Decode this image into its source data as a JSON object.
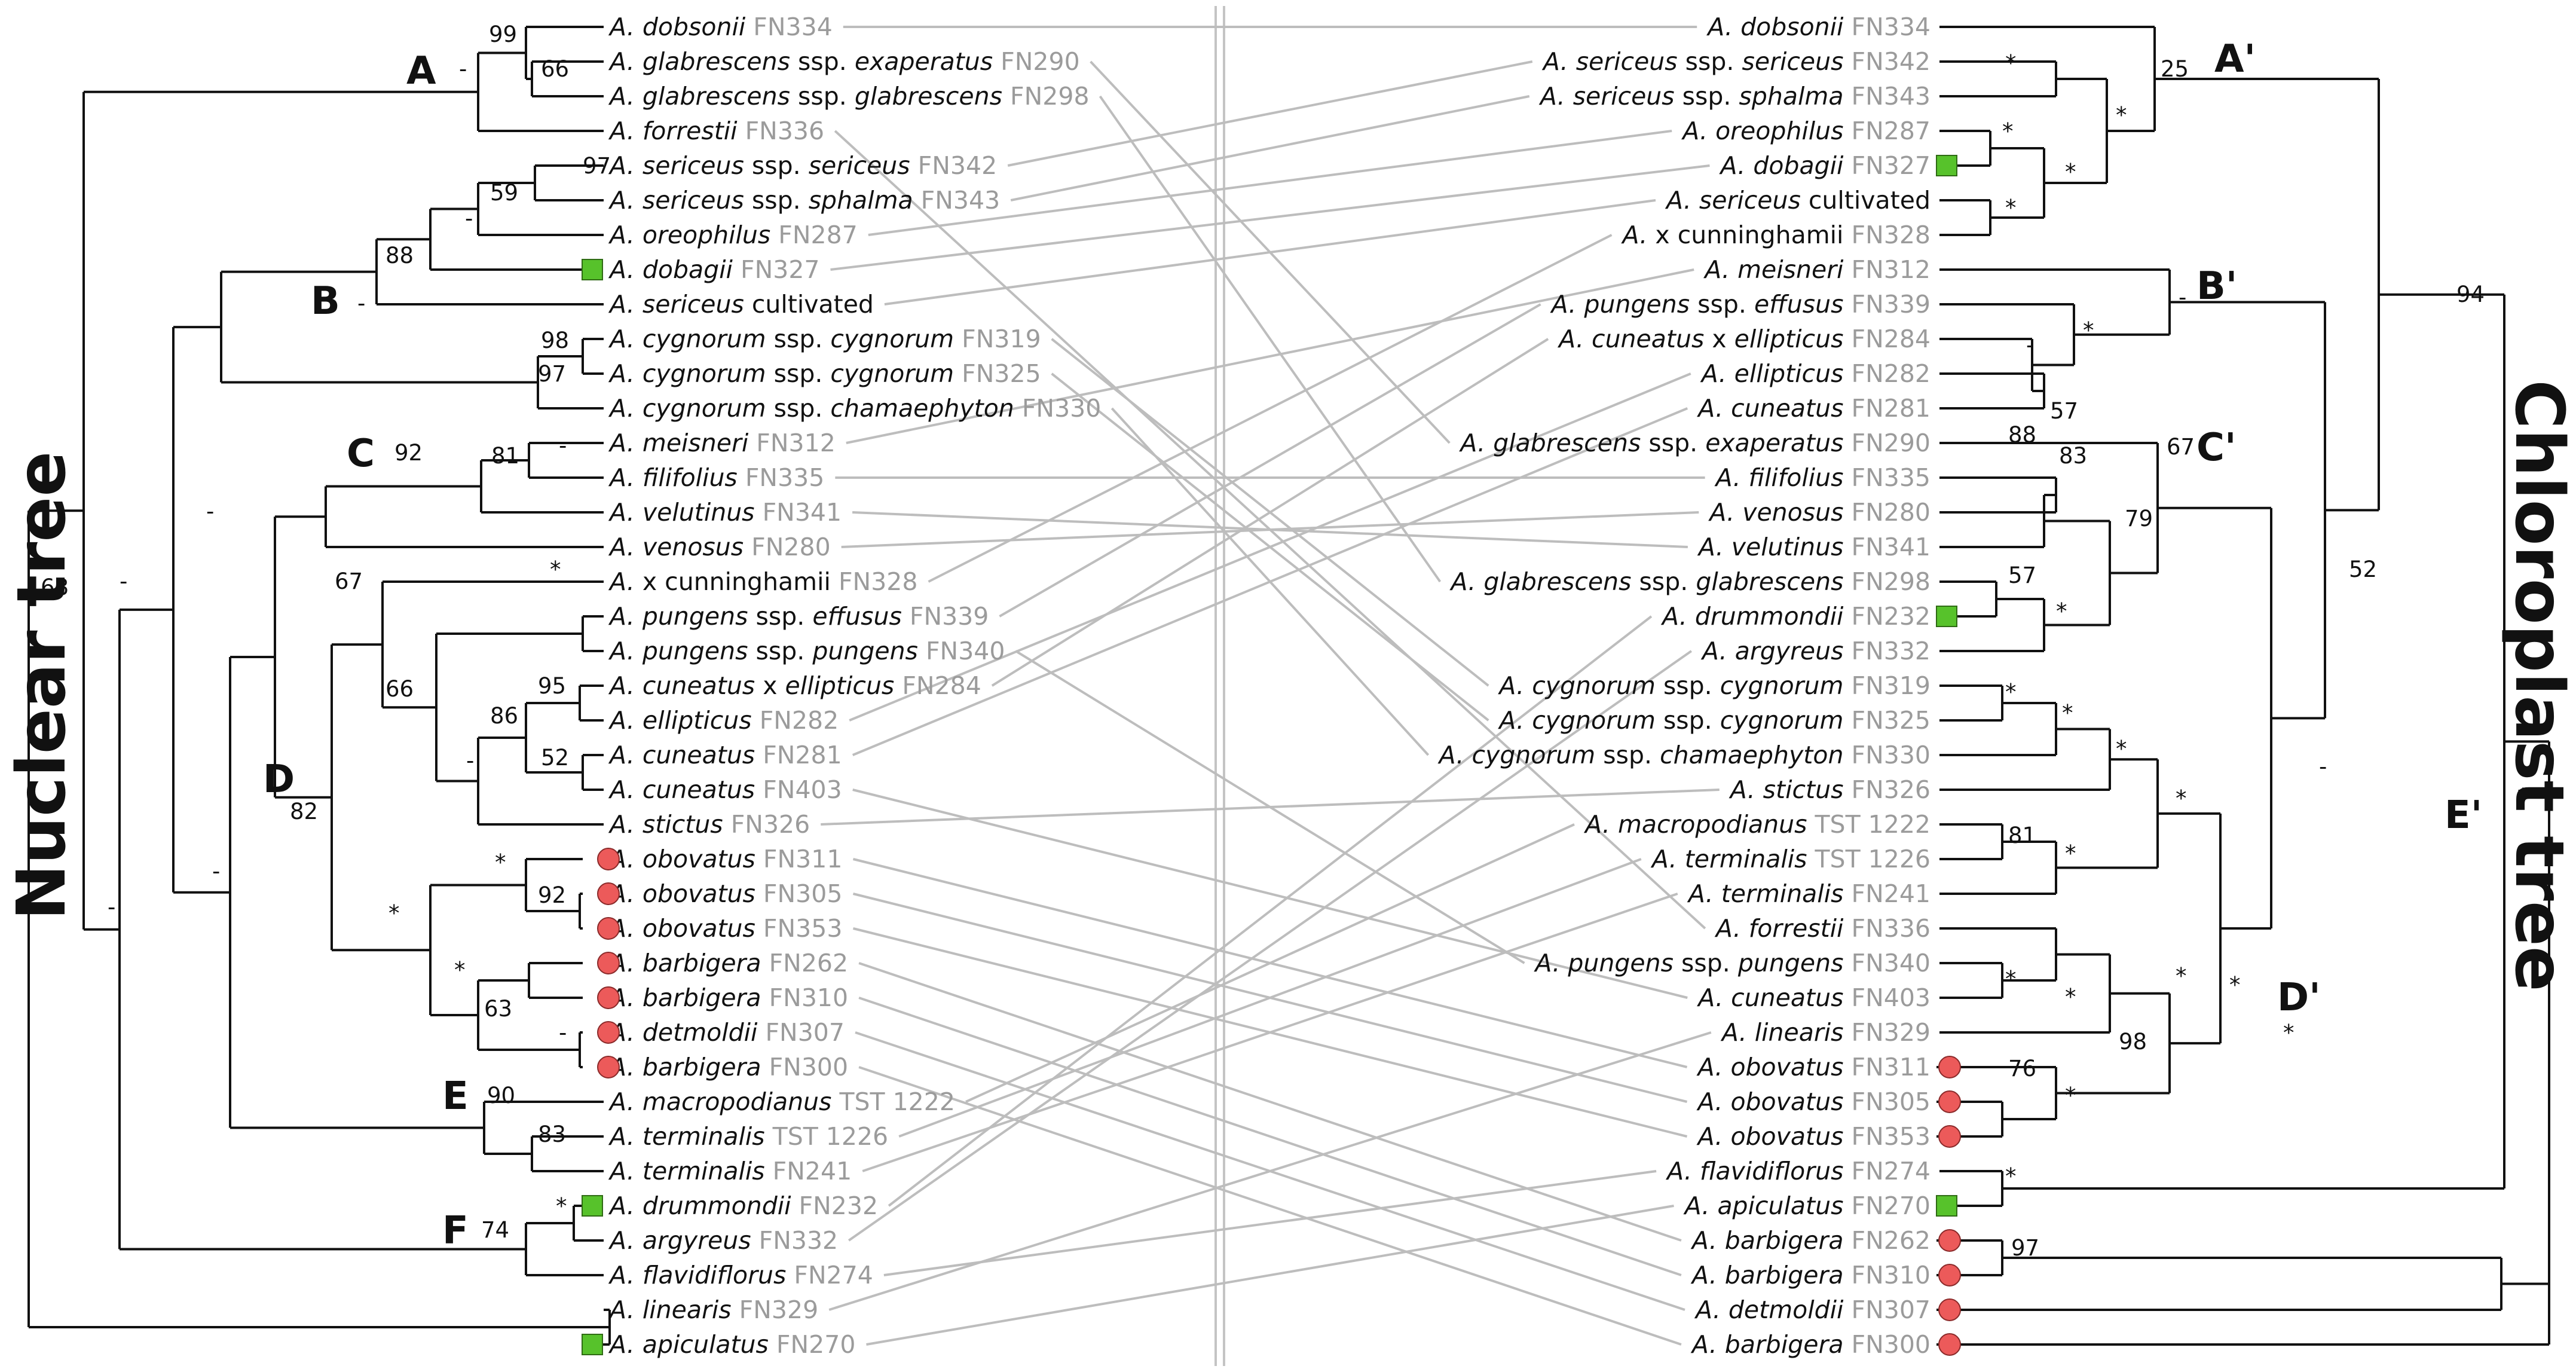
{
  "titles": {
    "nuclear": "Nuclear tree",
    "chloroplast": "Chloroplast tree"
  },
  "colors": {
    "branch": "#111111",
    "connector": "#bdbdbd",
    "code_text": "#9b9b9b",
    "square_marker": "#57c22b",
    "circle_marker": "#ec5a5a"
  },
  "nuclear_tips": [
    {
      "genus": "A.",
      "parts": [
        {
          "t": "dobsonii",
          "i": true
        }
      ],
      "code": "FN334",
      "marker": null
    },
    {
      "genus": "A.",
      "parts": [
        {
          "t": "glabrescens",
          "i": true
        },
        {
          "t": " ssp. ",
          "i": false
        },
        {
          "t": "exaperatus",
          "i": true
        }
      ],
      "code": "FN290",
      "marker": null
    },
    {
      "genus": "A.",
      "parts": [
        {
          "t": "glabrescens",
          "i": true
        },
        {
          "t": " ssp. ",
          "i": false
        },
        {
          "t": "glabrescens",
          "i": true
        }
      ],
      "code": "FN298",
      "marker": null
    },
    {
      "genus": "A.",
      "parts": [
        {
          "t": "forrestii",
          "i": true
        }
      ],
      "code": "FN336",
      "marker": null
    },
    {
      "genus": "A.",
      "parts": [
        {
          "t": "sericeus",
          "i": true
        },
        {
          "t": " ssp. ",
          "i": false
        },
        {
          "t": "sericeus",
          "i": true
        }
      ],
      "code": "FN342",
      "marker": null
    },
    {
      "genus": "A.",
      "parts": [
        {
          "t": "sericeus",
          "i": true
        },
        {
          "t": " ssp. ",
          "i": false
        },
        {
          "t": "sphalma",
          "i": true
        }
      ],
      "code": "FN343",
      "marker": null
    },
    {
      "genus": "A.",
      "parts": [
        {
          "t": "oreophilus",
          "i": true
        }
      ],
      "code": "FN287",
      "marker": null
    },
    {
      "genus": "A.",
      "parts": [
        {
          "t": "dobagii",
          "i": true
        }
      ],
      "code": "FN327",
      "marker": "square"
    },
    {
      "genus": "A.",
      "parts": [
        {
          "t": "sericeus",
          "i": true
        },
        {
          "t": " cultivated",
          "i": false
        }
      ],
      "code": "",
      "marker": null
    },
    {
      "genus": "A.",
      "parts": [
        {
          "t": "cygnorum",
          "i": true
        },
        {
          "t": " ssp. ",
          "i": false
        },
        {
          "t": "cygnorum",
          "i": true
        }
      ],
      "code": "FN319",
      "marker": null
    },
    {
      "genus": "A.",
      "parts": [
        {
          "t": "cygnorum",
          "i": true
        },
        {
          "t": " ssp. ",
          "i": false
        },
        {
          "t": "cygnorum",
          "i": true
        }
      ],
      "code": "FN325",
      "marker": null
    },
    {
      "genus": "A.",
      "parts": [
        {
          "t": "cygnorum",
          "i": true
        },
        {
          "t": " ssp. ",
          "i": false
        },
        {
          "t": "chamaephyton",
          "i": true
        }
      ],
      "code": "FN330",
      "marker": null
    },
    {
      "genus": "A.",
      "parts": [
        {
          "t": "meisneri",
          "i": true
        }
      ],
      "code": "FN312",
      "marker": null
    },
    {
      "genus": "A.",
      "parts": [
        {
          "t": "filifolius",
          "i": true
        }
      ],
      "code": "FN335",
      "marker": null
    },
    {
      "genus": "A.",
      "parts": [
        {
          "t": "velutinus",
          "i": true
        }
      ],
      "code": "FN341",
      "marker": null
    },
    {
      "genus": "A.",
      "parts": [
        {
          "t": "venosus",
          "i": true
        }
      ],
      "code": "FN280",
      "marker": null
    },
    {
      "genus": "A.",
      "parts": [
        {
          "t": "x cunninghamii",
          "i": false
        }
      ],
      "code": "FN328",
      "marker": null
    },
    {
      "genus": "A.",
      "parts": [
        {
          "t": "pungens",
          "i": true
        },
        {
          "t": " ssp. ",
          "i": false
        },
        {
          "t": "effusus",
          "i": true
        }
      ],
      "code": "FN339",
      "marker": null
    },
    {
      "genus": "A.",
      "parts": [
        {
          "t": "pungens",
          "i": true
        },
        {
          "t": " ssp. ",
          "i": false
        },
        {
          "t": "pungens",
          "i": true
        }
      ],
      "code": "FN340",
      "marker": null
    },
    {
      "genus": "A.",
      "parts": [
        {
          "t": "cuneatus",
          "i": true
        },
        {
          "t": " x ",
          "i": false
        },
        {
          "t": "ellipticus",
          "i": true
        }
      ],
      "code": "FN284",
      "marker": null
    },
    {
      "genus": "A.",
      "parts": [
        {
          "t": "ellipticus",
          "i": true
        }
      ],
      "code": "FN282",
      "marker": null
    },
    {
      "genus": "A.",
      "parts": [
        {
          "t": "cuneatus",
          "i": true
        }
      ],
      "code": "FN281",
      "marker": null
    },
    {
      "genus": "A.",
      "parts": [
        {
          "t": "cuneatus",
          "i": true
        }
      ],
      "code": "FN403",
      "marker": null
    },
    {
      "genus": "A.",
      "parts": [
        {
          "t": "stictus",
          "i": true
        }
      ],
      "code": "FN326",
      "marker": null
    },
    {
      "genus": "A.",
      "parts": [
        {
          "t": "obovatus",
          "i": true
        }
      ],
      "code": "FN311",
      "marker": "circle"
    },
    {
      "genus": "A.",
      "parts": [
        {
          "t": "obovatus",
          "i": true
        }
      ],
      "code": "FN305",
      "marker": "circle"
    },
    {
      "genus": "A.",
      "parts": [
        {
          "t": "obovatus",
          "i": true
        }
      ],
      "code": "FN353",
      "marker": "circle"
    },
    {
      "genus": "A.",
      "parts": [
        {
          "t": "barbigera",
          "i": true
        }
      ],
      "code": "FN262",
      "marker": "circle"
    },
    {
      "genus": "A.",
      "parts": [
        {
          "t": "barbigera",
          "i": true
        }
      ],
      "code": "FN310",
      "marker": "circle"
    },
    {
      "genus": "A.",
      "parts": [
        {
          "t": "detmoldii",
          "i": true
        }
      ],
      "code": "FN307",
      "marker": "circle"
    },
    {
      "genus": "A.",
      "parts": [
        {
          "t": "barbigera",
          "i": true
        }
      ],
      "code": "FN300",
      "marker": "circle"
    },
    {
      "genus": "A.",
      "parts": [
        {
          "t": "macropodianus",
          "i": true
        }
      ],
      "code": "TST 1222",
      "marker": null
    },
    {
      "genus": "A.",
      "parts": [
        {
          "t": "terminalis",
          "i": true
        }
      ],
      "code": "TST 1226",
      "marker": null
    },
    {
      "genus": "A.",
      "parts": [
        {
          "t": "terminalis",
          "i": true
        }
      ],
      "code": "FN241",
      "marker": null
    },
    {
      "genus": "A.",
      "parts": [
        {
          "t": "drummondii",
          "i": true
        }
      ],
      "code": "FN232",
      "marker": "square"
    },
    {
      "genus": "A.",
      "parts": [
        {
          "t": "argyreus",
          "i": true
        }
      ],
      "code": "FN332",
      "marker": null
    },
    {
      "genus": "A.",
      "parts": [
        {
          "t": "flavidiflorus",
          "i": true
        }
      ],
      "code": "FN274",
      "marker": null
    },
    {
      "genus": "A.",
      "parts": [
        {
          "t": "linearis",
          "i": true
        }
      ],
      "code": "FN329",
      "marker": null
    },
    {
      "genus": "A.",
      "parts": [
        {
          "t": "apiculatus",
          "i": true
        }
      ],
      "code": "FN270",
      "marker": "square"
    }
  ],
  "chloroplast_tips": [
    {
      "genus": "A.",
      "parts": [
        {
          "t": "dobsonii",
          "i": true
        }
      ],
      "code": "FN334",
      "marker": null
    },
    {
      "genus": "A.",
      "parts": [
        {
          "t": "sericeus",
          "i": true
        },
        {
          "t": " ssp. ",
          "i": false
        },
        {
          "t": "sericeus",
          "i": true
        }
      ],
      "code": "FN342",
      "marker": null
    },
    {
      "genus": "A.",
      "parts": [
        {
          "t": "sericeus",
          "i": true
        },
        {
          "t": " ssp. ",
          "i": false
        },
        {
          "t": "sphalma",
          "i": true
        }
      ],
      "code": "FN343",
      "marker": null
    },
    {
      "genus": "A.",
      "parts": [
        {
          "t": "oreophilus",
          "i": true
        }
      ],
      "code": "FN287",
      "marker": null
    },
    {
      "genus": "A.",
      "parts": [
        {
          "t": "dobagii",
          "i": true
        }
      ],
      "code": "FN327",
      "marker": "square"
    },
    {
      "genus": "A.",
      "parts": [
        {
          "t": "sericeus",
          "i": true
        },
        {
          "t": " cultivated",
          "i": false
        }
      ],
      "code": "",
      "marker": null
    },
    {
      "genus": "A.",
      "parts": [
        {
          "t": "x cunninghamii",
          "i": false
        }
      ],
      "code": "FN328",
      "marker": null
    },
    {
      "genus": "A.",
      "parts": [
        {
          "t": "meisneri",
          "i": true
        }
      ],
      "code": "FN312",
      "marker": null
    },
    {
      "genus": "A.",
      "parts": [
        {
          "t": "pungens",
          "i": true
        },
        {
          "t": " ssp. ",
          "i": false
        },
        {
          "t": "effusus",
          "i": true
        }
      ],
      "code": "FN339",
      "marker": null
    },
    {
      "genus": "A.",
      "parts": [
        {
          "t": "cuneatus",
          "i": true
        },
        {
          "t": " x ",
          "i": false
        },
        {
          "t": "ellipticus",
          "i": true
        }
      ],
      "code": "FN284",
      "marker": null
    },
    {
      "genus": "A.",
      "parts": [
        {
          "t": "ellipticus",
          "i": true
        }
      ],
      "code": "FN282",
      "marker": null
    },
    {
      "genus": "A.",
      "parts": [
        {
          "t": "cuneatus",
          "i": true
        }
      ],
      "code": "FN281",
      "marker": null
    },
    {
      "genus": "A.",
      "parts": [
        {
          "t": "glabrescens",
          "i": true
        },
        {
          "t": " ssp. ",
          "i": false
        },
        {
          "t": "exaperatus",
          "i": true
        }
      ],
      "code": "FN290",
      "marker": null
    },
    {
      "genus": "A.",
      "parts": [
        {
          "t": "filifolius",
          "i": true
        }
      ],
      "code": "FN335",
      "marker": null
    },
    {
      "genus": "A.",
      "parts": [
        {
          "t": "venosus",
          "i": true
        }
      ],
      "code": "FN280",
      "marker": null
    },
    {
      "genus": "A.",
      "parts": [
        {
          "t": "velutinus",
          "i": true
        }
      ],
      "code": "FN341",
      "marker": null
    },
    {
      "genus": "A.",
      "parts": [
        {
          "t": "glabrescens",
          "i": true
        },
        {
          "t": " ssp. ",
          "i": false
        },
        {
          "t": "glabrescens",
          "i": true
        }
      ],
      "code": "FN298",
      "marker": null
    },
    {
      "genus": "A.",
      "parts": [
        {
          "t": "drummondii",
          "i": true
        }
      ],
      "code": "FN232",
      "marker": "square"
    },
    {
      "genus": "A.",
      "parts": [
        {
          "t": "argyreus",
          "i": true
        }
      ],
      "code": "FN332",
      "marker": null
    },
    {
      "genus": "A.",
      "parts": [
        {
          "t": "cygnorum",
          "i": true
        },
        {
          "t": " ssp. ",
          "i": false
        },
        {
          "t": "cygnorum",
          "i": true
        }
      ],
      "code": "FN319",
      "marker": null
    },
    {
      "genus": "A.",
      "parts": [
        {
          "t": "cygnorum",
          "i": true
        },
        {
          "t": " ssp. ",
          "i": false
        },
        {
          "t": "cygnorum",
          "i": true
        }
      ],
      "code": "FN325",
      "marker": null
    },
    {
      "genus": "A.",
      "parts": [
        {
          "t": "cygnorum",
          "i": true
        },
        {
          "t": " ssp. ",
          "i": false
        },
        {
          "t": "chamaephyton",
          "i": true
        }
      ],
      "code": "FN330",
      "marker": null
    },
    {
      "genus": "A.",
      "parts": [
        {
          "t": "stictus",
          "i": true
        }
      ],
      "code": "FN326",
      "marker": null
    },
    {
      "genus": "A.",
      "parts": [
        {
          "t": "macropodianus",
          "i": true
        }
      ],
      "code": "TST 1222",
      "marker": null
    },
    {
      "genus": "A.",
      "parts": [
        {
          "t": "terminalis",
          "i": true
        }
      ],
      "code": "TST 1226",
      "marker": null
    },
    {
      "genus": "A.",
      "parts": [
        {
          "t": "terminalis",
          "i": true
        }
      ],
      "code": "FN241",
      "marker": null
    },
    {
      "genus": "A.",
      "parts": [
        {
          "t": "forrestii",
          "i": true
        }
      ],
      "code": "FN336",
      "marker": null
    },
    {
      "genus": "A.",
      "parts": [
        {
          "t": "pungens",
          "i": true
        },
        {
          "t": " ssp. ",
          "i": false
        },
        {
          "t": "pungens",
          "i": true
        }
      ],
      "code": "FN340",
      "marker": null
    },
    {
      "genus": "A.",
      "parts": [
        {
          "t": "cuneatus",
          "i": true
        }
      ],
      "code": "FN403",
      "marker": null
    },
    {
      "genus": "A.",
      "parts": [
        {
          "t": "linearis",
          "i": true
        }
      ],
      "code": "FN329",
      "marker": null
    },
    {
      "genus": "A.",
      "parts": [
        {
          "t": "obovatus",
          "i": true
        }
      ],
      "code": "FN311",
      "marker": "circle"
    },
    {
      "genus": "A.",
      "parts": [
        {
          "t": "obovatus",
          "i": true
        }
      ],
      "code": "FN305",
      "marker": "circle"
    },
    {
      "genus": "A.",
      "parts": [
        {
          "t": "obovatus",
          "i": true
        }
      ],
      "code": "FN353",
      "marker": "circle"
    },
    {
      "genus": "A.",
      "parts": [
        {
          "t": "flavidiflorus",
          "i": true
        }
      ],
      "code": "FN274",
      "marker": null
    },
    {
      "genus": "A.",
      "parts": [
        {
          "t": "apiculatus",
          "i": true
        }
      ],
      "code": "FN270",
      "marker": "square"
    },
    {
      "genus": "A.",
      "parts": [
        {
          "t": "barbigera",
          "i": true
        }
      ],
      "code": "FN262",
      "marker": "circle"
    },
    {
      "genus": "A.",
      "parts": [
        {
          "t": "barbigera",
          "i": true
        }
      ],
      "code": "FN310",
      "marker": "circle"
    },
    {
      "genus": "A.",
      "parts": [
        {
          "t": "detmoldii",
          "i": true
        }
      ],
      "code": "FN307",
      "marker": "circle"
    },
    {
      "genus": "A.",
      "parts": [
        {
          "t": "barbigera",
          "i": true
        }
      ],
      "code": "FN300",
      "marker": "circle"
    }
  ],
  "nuclear_clades": [
    "A",
    "B",
    "C",
    "D",
    "E",
    "F"
  ],
  "chloroplast_clades": [
    "A'",
    "B'",
    "C'",
    "D'",
    "E'"
  ],
  "nuclear_support": {
    "n99": "99",
    "n66a": "66",
    "nA": "-",
    "n97a": "97",
    "n59": "59",
    "nDash1": "-",
    "n88": "88",
    "nB": "-",
    "n98": "98",
    "n97b": "97",
    "nDash2": "-",
    "n81": "81",
    "nC": "92",
    "nStar1": "*",
    "n67": "67",
    "n95": "95",
    "n86": "86",
    "n52": "52",
    "nDash3": "-",
    "n66b": "66",
    "nD": "82",
    "nStar2": "*",
    "n92": "92",
    "nStar3": "*",
    "nStar4": "*",
    "n63": "63",
    "nDash4": "-",
    "nE": "90",
    "n83": "83",
    "nF": "74",
    "nStar5": "*",
    "nDash5": "-",
    "nDash6": "-",
    "nDash7": "-",
    "nDash8": "-",
    "nRoot": "68"
  },
  "chloroplast_support": {
    "cStar1": "*",
    "cStar2": "*",
    "cStar3": "*",
    "cStar4": "*",
    "cStar5": "*",
    "c25": "25",
    "cDash1": "-",
    "c57a": "57",
    "cStar6": "*",
    "cB": "-",
    "c88": "88",
    "c83": "83",
    "c79": "79",
    "c57b": "57",
    "cStar7": "*",
    "c67": "67",
    "cStar8": "*",
    "cStar9": "*",
    "cStar10": "*",
    "c81": "81",
    "cStar11": "*",
    "cStar12": "*",
    "cStar13": "*",
    "cStar14": "*",
    "cStar15": "*",
    "c76": "76",
    "cStar16": "*",
    "c98": "98",
    "cStar17": "*",
    "cStar18": "*",
    "cD": "*",
    "cDash2": "-",
    "c52": "52",
    "c94": "94",
    "c97": "97",
    "cE": "*"
  }
}
